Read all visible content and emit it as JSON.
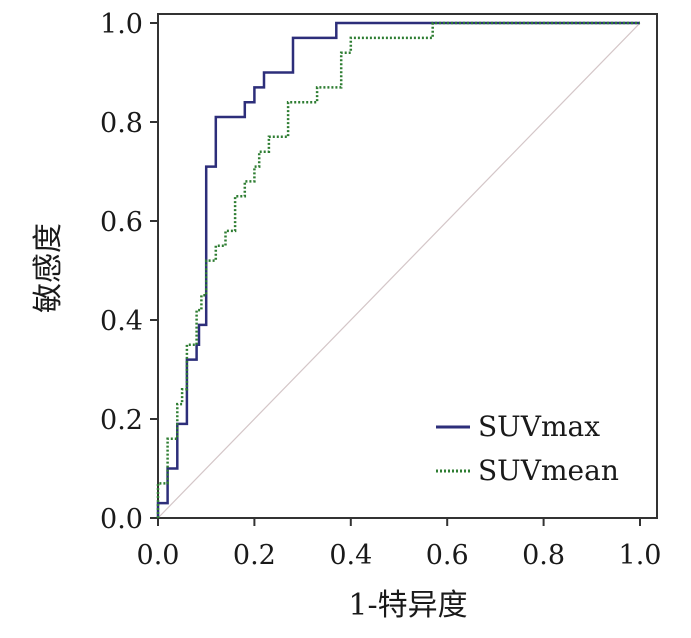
{
  "chart_data": {
    "type": "line",
    "title": "",
    "xlabel": "1-特异度",
    "ylabel": "敏感度",
    "xlim": [
      0,
      1
    ],
    "ylim": [
      0,
      1
    ],
    "x_ticks": [
      "0.0",
      "0.2",
      "0.4",
      "0.6",
      "0.8",
      "1.0"
    ],
    "y_ticks": [
      "0.0",
      "0.2",
      "0.4",
      "0.6",
      "0.8",
      "1.0"
    ],
    "grid": false,
    "legend_position": "bottom-right",
    "series": [
      {
        "name": "SUVmax",
        "style": "solid",
        "color": "#2d2e7a",
        "points": [
          [
            0.0,
            0.0
          ],
          [
            0.0,
            0.03
          ],
          [
            0.02,
            0.03
          ],
          [
            0.02,
            0.1
          ],
          [
            0.04,
            0.1
          ],
          [
            0.04,
            0.19
          ],
          [
            0.06,
            0.19
          ],
          [
            0.06,
            0.32
          ],
          [
            0.08,
            0.32
          ],
          [
            0.08,
            0.35
          ],
          [
            0.085,
            0.35
          ],
          [
            0.085,
            0.39
          ],
          [
            0.1,
            0.39
          ],
          [
            0.1,
            0.71
          ],
          [
            0.12,
            0.71
          ],
          [
            0.12,
            0.81
          ],
          [
            0.18,
            0.81
          ],
          [
            0.18,
            0.84
          ],
          [
            0.2,
            0.84
          ],
          [
            0.2,
            0.87
          ],
          [
            0.22,
            0.87
          ],
          [
            0.22,
            0.9
          ],
          [
            0.28,
            0.9
          ],
          [
            0.28,
            0.97
          ],
          [
            0.37,
            0.97
          ],
          [
            0.37,
            1.0
          ],
          [
            1.0,
            1.0
          ]
        ]
      },
      {
        "name": "SUVmean",
        "style": "dotted",
        "color": "#2e7d32",
        "points": [
          [
            0.0,
            0.0
          ],
          [
            0.0,
            0.07
          ],
          [
            0.02,
            0.07
          ],
          [
            0.02,
            0.16
          ],
          [
            0.04,
            0.16
          ],
          [
            0.04,
            0.23
          ],
          [
            0.05,
            0.23
          ],
          [
            0.05,
            0.26
          ],
          [
            0.06,
            0.26
          ],
          [
            0.06,
            0.35
          ],
          [
            0.08,
            0.35
          ],
          [
            0.08,
            0.42
          ],
          [
            0.09,
            0.42
          ],
          [
            0.09,
            0.45
          ],
          [
            0.1,
            0.45
          ],
          [
            0.1,
            0.52
          ],
          [
            0.12,
            0.52
          ],
          [
            0.12,
            0.55
          ],
          [
            0.14,
            0.55
          ],
          [
            0.14,
            0.58
          ],
          [
            0.16,
            0.58
          ],
          [
            0.16,
            0.65
          ],
          [
            0.18,
            0.65
          ],
          [
            0.18,
            0.68
          ],
          [
            0.2,
            0.68
          ],
          [
            0.2,
            0.71
          ],
          [
            0.21,
            0.71
          ],
          [
            0.21,
            0.74
          ],
          [
            0.23,
            0.74
          ],
          [
            0.23,
            0.77
          ],
          [
            0.27,
            0.77
          ],
          [
            0.27,
            0.84
          ],
          [
            0.33,
            0.84
          ],
          [
            0.33,
            0.87
          ],
          [
            0.38,
            0.87
          ],
          [
            0.38,
            0.94
          ],
          [
            0.4,
            0.94
          ],
          [
            0.4,
            0.97
          ],
          [
            0.57,
            0.97
          ],
          [
            0.57,
            1.0
          ],
          [
            1.0,
            1.0
          ]
        ]
      }
    ],
    "reference_line": {
      "from": [
        0,
        0
      ],
      "to": [
        1,
        1
      ],
      "color": "#d4c6c8"
    }
  }
}
